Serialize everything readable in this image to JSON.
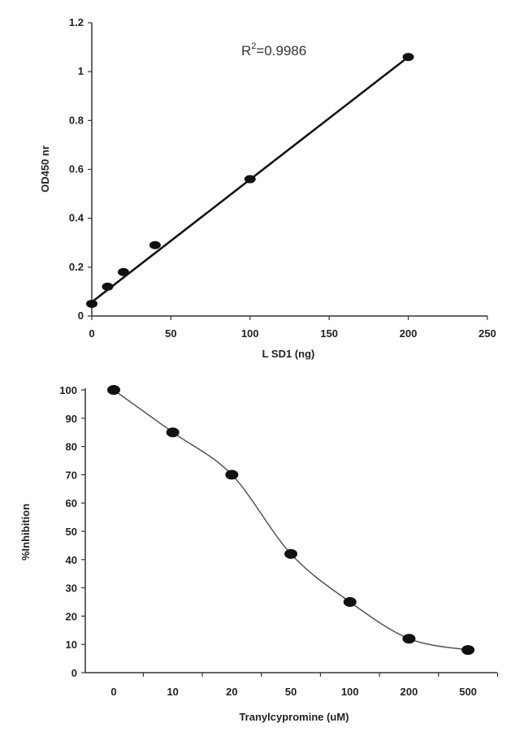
{
  "chart_data": [
    {
      "type": "scatter",
      "title": "",
      "xlabel": "L SD1 (ng)",
      "ylabel": "OD450 nr",
      "xlim": [
        0,
        250
      ],
      "ylim": [
        0,
        1.2
      ],
      "xticks": [
        "0",
        "50",
        "100",
        "150",
        "200",
        "250"
      ],
      "yticks": [
        "0",
        "0.2",
        "0.4",
        "0.6",
        "0.8",
        "1",
        "1.2"
      ],
      "x": [
        0,
        10,
        20,
        40,
        100,
        200
      ],
      "y": [
        0.05,
        0.12,
        0.18,
        0.29,
        0.56,
        1.06
      ],
      "fit_line": {
        "x": [
          0,
          200
        ],
        "y": [
          0.057,
          1.06
        ]
      },
      "annotation": {
        "base": "R",
        "sup": "2",
        "rest": "=0.9986"
      },
      "grid": false,
      "legend": "none"
    },
    {
      "type": "line",
      "title": "",
      "xlabel": "Tranylcypromine (uM)",
      "ylabel": "%Inhibition",
      "ylim": [
        0,
        100
      ],
      "categories": [
        "0",
        "10",
        "20",
        "50",
        "100",
        "200",
        "500"
      ],
      "yticks": [
        "0",
        "10",
        "20",
        "30",
        "40",
        "50",
        "60",
        "70",
        "80",
        "90",
        "100"
      ],
      "values": [
        100,
        85,
        70,
        42,
        25,
        12,
        8
      ],
      "grid": false,
      "legend": "none"
    }
  ],
  "colors": {
    "marker": "#111111",
    "fit": "#111111",
    "curve": "#555555",
    "axis": "#333333"
  }
}
